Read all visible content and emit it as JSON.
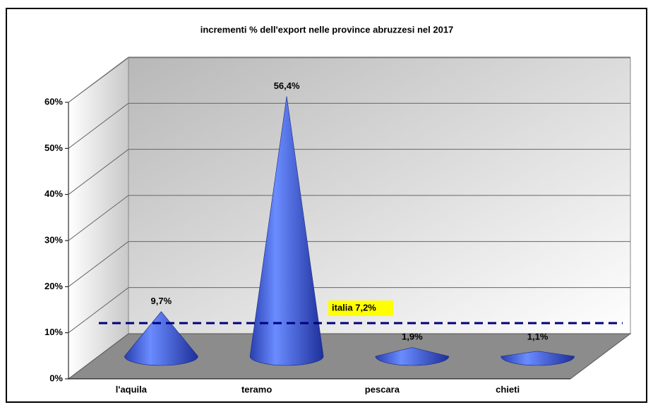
{
  "chart_data": {
    "type": "cone",
    "title": "incrementi % dell'export nelle province abruzzesi nel 2017",
    "categories": [
      "l'aquila",
      "teramo",
      "pescara",
      "chieti"
    ],
    "values": [
      9.7,
      56.4,
      1.9,
      1.1
    ],
    "value_labels": [
      "9,7%",
      "56,4%",
      "1,9%",
      "1,1%"
    ],
    "color": "#3a5ff0",
    "ylim": [
      0,
      60
    ],
    "yticks": [
      {
        "value": 0,
        "label": "0%"
      },
      {
        "value": 10,
        "label": "10%"
      },
      {
        "value": 20,
        "label": "20%"
      },
      {
        "value": 30,
        "label": "30%"
      },
      {
        "value": 40,
        "label": "40%"
      },
      {
        "value": 50,
        "label": "50%"
      },
      {
        "value": 60,
        "label": "60%"
      }
    ],
    "grid": true,
    "reference_line": {
      "label": "italia 7,2%",
      "value": 7.2,
      "color": "#000080"
    }
  }
}
